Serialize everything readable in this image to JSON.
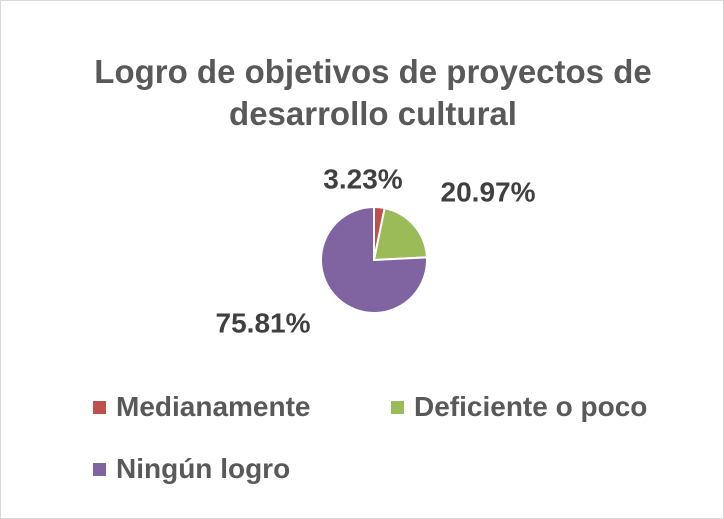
{
  "chart_data": {
    "type": "pie",
    "title": "Logro de objetivos de proyectos de desarrollo cultural",
    "categories": [
      "Medianamente",
      "Deficiente o poco",
      "Ningún logro"
    ],
    "values": [
      3.23,
      20.97,
      75.81
    ],
    "value_labels": [
      "3.23%",
      "20.97%",
      "75.81%"
    ],
    "colors": [
      "#c0504d",
      "#9bbb59",
      "#8064a2"
    ],
    "legend": "bottom"
  }
}
